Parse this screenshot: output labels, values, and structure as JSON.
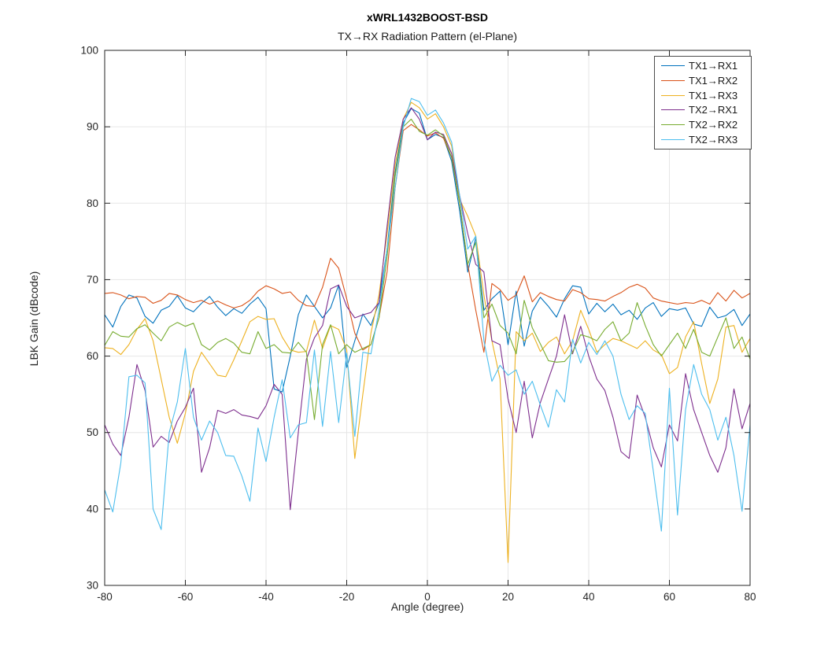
{
  "figure": {
    "title": "xWRL1432BOOST-BSD",
    "subtitle": "TX→RX Radiation Pattern (el-Plane)"
  },
  "colors": {
    "axis": "#262626",
    "grid": "#e6e6e6",
    "background": "#ffffff",
    "series_blue": "#0072BD",
    "series_orange": "#D95319",
    "series_yellow": "#EDB120",
    "series_purple": "#7E2F8E",
    "series_green": "#77AC30",
    "series_cyan": "#4DBEEE"
  },
  "chart_data": {
    "type": "line",
    "title": "xWRL1432BOOST-BSD",
    "subtitle": "TX→RX Radiation Pattern (el-Plane)",
    "xlabel": "Angle (degree)",
    "ylabel": "LBK Gain (dBcode)",
    "xlim": [
      -80,
      80
    ],
    "ylim": [
      30,
      100
    ],
    "x_ticks": [
      -80,
      -60,
      -40,
      -20,
      0,
      20,
      40,
      60,
      80
    ],
    "y_ticks": [
      30,
      40,
      50,
      60,
      70,
      80,
      90,
      100
    ],
    "grid": true,
    "legend_position": "northeast-inside",
    "x": [
      -80,
      -78,
      -76,
      -74,
      -72,
      -70,
      -68,
      -66,
      -64,
      -62,
      -60,
      -58,
      -56,
      -54,
      -52,
      -50,
      -48,
      -46,
      -44,
      -42,
      -40,
      -38,
      -36,
      -34,
      -32,
      -30,
      -28,
      -26,
      -24,
      -22,
      -20,
      -18,
      -16,
      -14,
      -12,
      -10,
      -8,
      -6,
      -4,
      -2,
      0,
      2,
      4,
      6,
      8,
      10,
      12,
      14,
      16,
      18,
      20,
      22,
      24,
      26,
      28,
      30,
      32,
      34,
      36,
      38,
      40,
      42,
      44,
      46,
      48,
      50,
      52,
      54,
      56,
      58,
      60,
      62,
      64,
      66,
      68,
      70,
      72,
      74,
      76,
      78,
      80
    ],
    "series": [
      {
        "name": "TX1→RX1",
        "color": "#0072BD",
        "values": [
          65.4,
          63.8,
          66.5,
          68.0,
          67.6,
          65.2,
          64.3,
          66.0,
          66.5,
          67.9,
          66.3,
          65.8,
          66.9,
          67.8,
          66.4,
          65.3,
          66.2,
          65.6,
          66.8,
          67.7,
          66.2,
          55.7,
          55.3,
          60.0,
          65.4,
          68.0,
          66.5,
          65.0,
          66.3,
          69.3,
          58.5,
          62.0,
          65.5,
          64.0,
          67.0,
          74.0,
          84.0,
          90.5,
          92.4,
          91.8,
          88.3,
          89.0,
          88.6,
          85.5,
          79.0,
          71.0,
          75.5,
          66.0,
          67.5,
          68.5,
          61.5,
          68.5,
          61.3,
          65.9,
          67.7,
          66.5,
          65.1,
          67.5,
          69.2,
          69.0,
          65.5,
          66.9,
          65.8,
          66.8,
          65.4,
          66.0,
          64.8,
          66.3,
          67.0,
          65.2,
          66.2,
          66.0,
          66.3,
          64.2,
          63.9,
          66.4,
          65.0,
          65.3,
          66.1,
          64.0,
          65.5
        ]
      },
      {
        "name": "TX1→RX2",
        "color": "#D95319",
        "values": [
          68.2,
          68.3,
          68.0,
          67.5,
          67.8,
          67.7,
          66.9,
          67.3,
          68.2,
          68.0,
          67.4,
          67.0,
          67.3,
          66.8,
          67.2,
          66.7,
          66.3,
          66.6,
          67.3,
          68.5,
          69.2,
          68.8,
          68.2,
          68.4,
          67.3,
          66.6,
          66.5,
          69.0,
          72.8,
          71.5,
          67.5,
          63.0,
          60.8,
          61.5,
          65.0,
          71.0,
          82.0,
          89.5,
          90.3,
          89.6,
          88.8,
          89.2,
          88.5,
          86.0,
          80.0,
          72.0,
          66.0,
          60.5,
          69.5,
          68.7,
          67.3,
          68.0,
          70.5,
          67.1,
          68.3,
          67.8,
          67.4,
          67.2,
          68.7,
          68.3,
          67.5,
          67.4,
          67.2,
          67.8,
          68.3,
          69.0,
          69.4,
          68.9,
          67.6,
          67.2,
          67.0,
          66.8,
          67.0,
          66.9,
          67.3,
          66.8,
          68.3,
          67.2,
          68.6,
          67.6,
          68.2
        ]
      },
      {
        "name": "TX1→RX3",
        "color": "#EDB120",
        "values": [
          61.1,
          61.0,
          60.2,
          61.5,
          63.5,
          64.9,
          62.0,
          57.0,
          52.0,
          48.6,
          52.5,
          58.0,
          60.5,
          59.0,
          57.5,
          57.3,
          59.5,
          62.0,
          64.5,
          65.2,
          64.8,
          64.9,
          62.5,
          60.8,
          60.5,
          60.6,
          64.7,
          61.0,
          64.0,
          63.5,
          60.8,
          46.6,
          55.0,
          63.0,
          68.0,
          76.0,
          85.0,
          91.0,
          93.2,
          92.5,
          91.0,
          91.7,
          90.0,
          87.5,
          80.5,
          78.3,
          75.7,
          68.0,
          62.0,
          57.0,
          33.0,
          63.2,
          62.0,
          63.0,
          60.6,
          61.8,
          62.5,
          60.3,
          62.0,
          66.0,
          63.5,
          60.5,
          61.5,
          62.3,
          62.0,
          61.5,
          61.0,
          62.0,
          60.8,
          60.2,
          57.7,
          58.5,
          62.5,
          64.5,
          59.0,
          53.8,
          57.0,
          63.8,
          64.0,
          60.5,
          62.3
        ]
      },
      {
        "name": "TX2→RX1",
        "color": "#7E2F8E",
        "values": [
          51.0,
          48.5,
          47.0,
          52.0,
          58.9,
          55.5,
          48.1,
          49.5,
          48.7,
          51.5,
          53.3,
          55.8,
          44.8,
          48.0,
          52.9,
          52.5,
          53.0,
          52.3,
          52.1,
          51.8,
          53.5,
          56.3,
          55.0,
          39.9,
          50.0,
          59.6,
          62.4,
          64.0,
          68.8,
          69.3,
          66.5,
          65.0,
          65.4,
          65.7,
          67.0,
          77.0,
          86.0,
          91.0,
          92.5,
          91.0,
          88.3,
          89.3,
          89.0,
          86.5,
          81.0,
          76.0,
          72.0,
          71.0,
          62.0,
          61.5,
          54.4,
          50.0,
          56.7,
          49.3,
          53.9,
          57.0,
          60.0,
          65.4,
          60.3,
          63.9,
          60.0,
          57.0,
          55.5,
          52.0,
          47.5,
          46.6,
          54.9,
          52.0,
          48.0,
          45.5,
          51.0,
          48.9,
          57.7,
          53.0,
          50.0,
          47.0,
          44.8,
          48.0,
          55.7,
          50.5,
          53.8
        ]
      },
      {
        "name": "TX2→RX2",
        "color": "#77AC30",
        "values": [
          61.4,
          63.2,
          62.6,
          62.5,
          63.6,
          64.1,
          63.0,
          62.0,
          63.8,
          64.4,
          63.9,
          64.3,
          61.5,
          60.8,
          61.8,
          62.3,
          61.7,
          60.5,
          60.3,
          63.2,
          61.0,
          61.5,
          60.5,
          60.4,
          61.8,
          60.5,
          51.7,
          61.5,
          64.1,
          60.3,
          61.5,
          60.5,
          61.0,
          61.5,
          65.0,
          73.0,
          83.5,
          90.0,
          91.0,
          89.4,
          88.9,
          89.6,
          88.8,
          86.0,
          80.0,
          72.0,
          74.9,
          65.0,
          66.8,
          64.0,
          63.0,
          60.3,
          67.3,
          63.7,
          61.6,
          59.4,
          59.2,
          59.3,
          60.5,
          62.8,
          62.5,
          62.0,
          63.5,
          64.5,
          62.0,
          63.0,
          67.0,
          64.0,
          61.5,
          60.0,
          61.5,
          63.0,
          61.0,
          63.5,
          60.5,
          60.0,
          62.5,
          65.0,
          61.0,
          62.5,
          59.6
        ]
      },
      {
        "name": "TX2→RX3",
        "color": "#4DBEEE",
        "values": [
          42.5,
          39.6,
          46.0,
          57.3,
          57.5,
          56.5,
          40.0,
          37.3,
          50.0,
          54.0,
          61.0,
          52.0,
          49.0,
          51.5,
          50.0,
          47.0,
          46.9,
          44.3,
          41.0,
          50.6,
          46.2,
          52.0,
          56.9,
          49.3,
          51.0,
          51.3,
          60.8,
          50.8,
          60.6,
          51.3,
          60.4,
          49.5,
          60.5,
          60.3,
          66.0,
          74.0,
          82.0,
          90.0,
          93.7,
          93.3,
          91.5,
          92.2,
          90.5,
          88.0,
          81.0,
          74.0,
          75.7,
          62.0,
          56.7,
          58.8,
          57.5,
          58.2,
          55.0,
          56.7,
          53.6,
          50.7,
          55.6,
          54.0,
          62.2,
          59.1,
          61.8,
          60.2,
          62.0,
          60.0,
          55.0,
          51.7,
          53.5,
          52.5,
          45.0,
          37.1,
          55.8,
          39.2,
          53.0,
          58.9,
          55.0,
          53.0,
          49.0,
          52.0,
          47.0,
          39.7,
          51.0
        ]
      }
    ]
  }
}
